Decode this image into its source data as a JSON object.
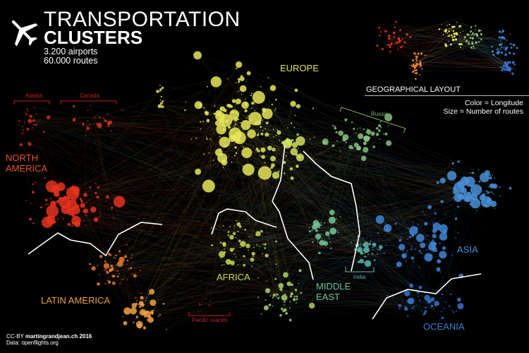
{
  "header": {
    "title_line1": "TRANSPORTATION",
    "title_line2": "CLUSTERS",
    "airports": "3.200 airports",
    "routes": "60.000 routes",
    "icon": "airplane-icon"
  },
  "minimap": {
    "caption": "GEOGRAPHICAL LAYOUT"
  },
  "legend": {
    "color": "Color = Longitude",
    "size": "Size = Number of routes"
  },
  "regions": {
    "north_america": {
      "line1": "NORTH",
      "line2": "AMERICA",
      "color": "#e8542e"
    },
    "alaska": {
      "label": "Alaska",
      "color": "#d02020"
    },
    "canada": {
      "label": "Canada",
      "color": "#d02020"
    },
    "europe": {
      "label": "EUROPE",
      "color": "#e2e35a"
    },
    "russia": {
      "label": "Russia",
      "color": "#7fb46a"
    },
    "asia": {
      "label": "ASIA",
      "color": "#4a8fd6"
    },
    "oceania": {
      "label": "OCEANIA",
      "color": "#3f7fd0"
    },
    "africa": {
      "label": "AFRICA",
      "color": "#c8dc52"
    },
    "middle_east": {
      "line1": "MIDDLE",
      "line2": "EAST",
      "color": "#6cc49a"
    },
    "india": {
      "label": "India",
      "color": "#5ab8b0"
    },
    "latin_america": {
      "label": "LATIN AMERICA",
      "color": "#f0a040"
    },
    "pacific_islands": {
      "label": "Pacific islands",
      "color": "#c02020"
    }
  },
  "credit": {
    "license": "CC-BY",
    "author": "martingrandjean.ch 2016",
    "data": "Data: openflights.org"
  }
}
